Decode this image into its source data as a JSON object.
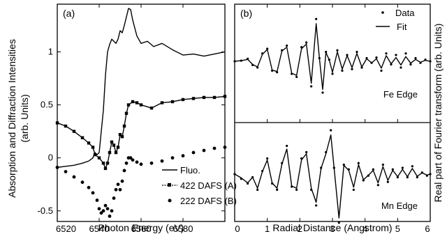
{
  "chart_data": [
    {
      "panel_label": "(a)",
      "type": "line",
      "xlabel": "Photon Energy (eV)",
      "ylabel_line1": "Absorption and Diffraction Intensities",
      "ylabel_line2": "(arb. Units)",
      "xlim": [
        6520,
        6600
      ],
      "ylim": [
        -0.6,
        1.45
      ],
      "xticks": [
        6520,
        6540,
        6560,
        6580
      ],
      "yticks": [
        -0.5,
        0,
        0.5,
        1
      ],
      "xtick_labels": [
        "6520",
        "6540",
        "6560",
        "6580"
      ],
      "ytick_labels": [
        "-0.5",
        "0",
        "0.5",
        "1"
      ],
      "legend_position": "bottom-center",
      "series": [
        {
          "name": "Fluo.",
          "style": "solid line",
          "x": [
            6520,
            6524,
            6528,
            6532,
            6535,
            6537,
            6538,
            6539,
            6540,
            6541,
            6542,
            6543,
            6544,
            6545,
            6546,
            6547,
            6548,
            6549,
            6550,
            6551,
            6552,
            6553,
            6554,
            6555,
            6556,
            6558,
            6560,
            6563,
            6566,
            6570,
            6575,
            6580,
            6585,
            6590,
            6595,
            6600
          ],
          "y": [
            -0.09,
            -0.08,
            -0.07,
            -0.05,
            -0.03,
            0.0,
            0.05,
            0.03,
            0.05,
            0.25,
            0.45,
            0.78,
            1.0,
            1.07,
            1.12,
            1.1,
            1.08,
            1.12,
            1.2,
            1.18,
            1.25,
            1.33,
            1.41,
            1.4,
            1.3,
            1.15,
            1.08,
            1.1,
            1.05,
            1.08,
            1.02,
            0.97,
            0.98,
            0.96,
            0.98,
            1.0
          ]
        },
        {
          "name": "422 DAFS (A)",
          "style": "line with square markers",
          "x": [
            6520,
            6524,
            6528,
            6532,
            6535,
            6537,
            6538,
            6540,
            6542,
            6543,
            6544,
            6545,
            6546,
            6547,
            6548,
            6549,
            6550,
            6551,
            6552,
            6553,
            6554,
            6556,
            6558,
            6560,
            6565,
            6570,
            6575,
            6580,
            6585,
            6590,
            6595,
            6600
          ],
          "y": [
            0.33,
            0.3,
            0.25,
            0.19,
            0.14,
            0.1,
            0.03,
            0.0,
            -0.05,
            -0.1,
            -0.05,
            0.05,
            0.15,
            0.12,
            0.05,
            0.1,
            0.22,
            0.2,
            0.3,
            0.42,
            0.5,
            0.53,
            0.52,
            0.5,
            0.47,
            0.52,
            0.53,
            0.55,
            0.56,
            0.57,
            0.57,
            0.58
          ]
        },
        {
          "name": "222 DAFS (B)",
          "style": "dots",
          "x": [
            6520,
            6524,
            6528,
            6532,
            6535,
            6537,
            6539,
            6540,
            6541,
            6542,
            6543,
            6544,
            6545,
            6546,
            6547,
            6548,
            6549,
            6550,
            6551,
            6552,
            6553,
            6554,
            6555,
            6556,
            6558,
            6560,
            6565,
            6570,
            6575,
            6580,
            6585,
            6590,
            6595,
            6600
          ],
          "y": [
            -0.09,
            -0.13,
            -0.18,
            -0.23,
            -0.28,
            -0.33,
            -0.4,
            -0.48,
            -0.52,
            -0.5,
            -0.45,
            -0.48,
            -0.55,
            -0.5,
            -0.38,
            -0.3,
            -0.25,
            -0.3,
            -0.22,
            -0.12,
            -0.05,
            0.0,
            0.0,
            -0.02,
            -0.04,
            -0.06,
            -0.05,
            -0.03,
            0.0,
            0.02,
            0.05,
            0.07,
            0.09,
            0.1
          ]
        }
      ]
    },
    {
      "panel_label": "(b)",
      "type": "line",
      "xlabel": "Radial Distance (Angstrom)",
      "ylabel": "Real part of Fourier transform (arb. Units)",
      "xlim": [
        0,
        6
      ],
      "xticks": [
        0,
        1,
        2,
        3,
        4,
        5,
        6
      ],
      "xtick_labels": [
        "0",
        "1",
        "2",
        "3",
        "4",
        "5",
        "6"
      ],
      "legend_position": "top-right",
      "legend": [
        {
          "name": "Data",
          "style": "dots"
        },
        {
          "name": "Fit",
          "style": "solid line"
        }
      ],
      "subplots": [
        {
          "label": "Fe Edge",
          "x": [
            0,
            0.2,
            0.4,
            0.55,
            0.7,
            0.85,
            1.0,
            1.15,
            1.3,
            1.45,
            1.6,
            1.75,
            1.9,
            2.05,
            2.2,
            2.35,
            2.5,
            2.6,
            2.7,
            2.8,
            2.9,
            3.0,
            3.15,
            3.3,
            3.45,
            3.6,
            3.75,
            3.9,
            4.05,
            4.2,
            4.35,
            4.5,
            4.65,
            4.8,
            4.95,
            5.1,
            5.25,
            5.4,
            5.55,
            5.7,
            5.85,
            6.0
          ],
          "data": [
            0.0,
            0.02,
            0.08,
            -0.12,
            -0.2,
            0.25,
            0.4,
            -0.3,
            -0.35,
            0.35,
            0.5,
            -0.4,
            -0.5,
            0.45,
            0.6,
            -0.8,
            1.35,
            0.1,
            -1.0,
            0.3,
            0.05,
            -0.4,
            0.35,
            -0.3,
            0.2,
            -0.25,
            0.3,
            -0.2,
            0.1,
            -0.05,
            0.12,
            -0.3,
            0.25,
            -0.1,
            0.2,
            -0.2,
            0.25,
            -0.1,
            0.1,
            -0.05,
            0.05,
            0.0
          ],
          "fit": [
            0.0,
            0.02,
            0.06,
            -0.1,
            -0.18,
            0.22,
            0.38,
            -0.28,
            -0.33,
            0.33,
            0.45,
            -0.38,
            -0.45,
            0.4,
            0.55,
            -0.7,
            1.2,
            0.1,
            -0.9,
            0.28,
            0.05,
            -0.35,
            0.3,
            -0.25,
            0.18,
            -0.2,
            0.25,
            -0.18,
            0.08,
            -0.05,
            0.08,
            -0.22,
            0.18,
            -0.08,
            0.12,
            -0.12,
            0.15,
            -0.06,
            0.06,
            -0.03,
            0.03,
            0.0
          ]
        },
        {
          "label": "Mn Edge",
          "x": [
            0,
            0.2,
            0.4,
            0.55,
            0.7,
            0.85,
            1.0,
            1.15,
            1.3,
            1.45,
            1.6,
            1.75,
            1.9,
            2.05,
            2.2,
            2.35,
            2.5,
            2.65,
            2.8,
            2.95,
            3.05,
            3.2,
            3.35,
            3.5,
            3.65,
            3.8,
            3.95,
            4.1,
            4.25,
            4.4,
            4.55,
            4.7,
            4.85,
            5.0,
            5.15,
            5.3,
            5.45,
            5.6,
            5.75,
            5.9,
            6.0
          ],
          "data": [
            0.0,
            -0.15,
            -0.3,
            -0.1,
            -0.5,
            0.1,
            0.5,
            -0.3,
            -0.5,
            0.35,
            0.9,
            -0.4,
            -0.5,
            0.5,
            0.7,
            -0.5,
            -1.0,
            0.2,
            0.7,
            1.4,
            0.2,
            -1.55,
            0.3,
            0.15,
            -0.5,
            0.35,
            -0.2,
            -0.05,
            0.15,
            -0.35,
            0.3,
            -0.25,
            0.15,
            -0.1,
            0.2,
            -0.1,
            0.25,
            -0.1,
            0.05,
            -0.05,
            0.0
          ],
          "fit": [
            0.0,
            -0.12,
            -0.28,
            -0.1,
            -0.45,
            0.08,
            0.45,
            -0.28,
            -0.45,
            0.32,
            0.8,
            -0.38,
            -0.45,
            0.45,
            0.65,
            -0.45,
            -0.9,
            0.18,
            0.65,
            1.25,
            0.2,
            -1.4,
            0.28,
            0.12,
            -0.42,
            0.3,
            -0.18,
            -0.04,
            0.12,
            -0.28,
            0.24,
            -0.2,
            0.12,
            -0.08,
            0.15,
            -0.08,
            0.18,
            -0.07,
            0.04,
            -0.03,
            0.0
          ]
        }
      ]
    }
  ]
}
